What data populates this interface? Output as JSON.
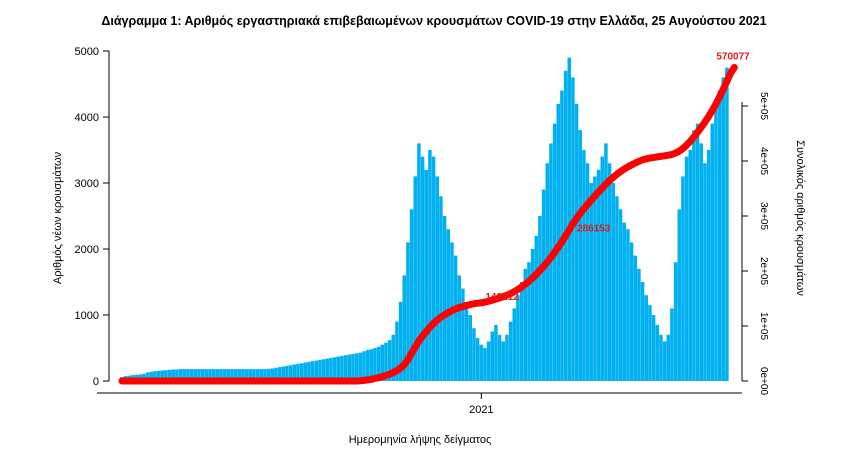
{
  "chart_data": {
    "type": "bar",
    "title": "Διάγραμμα 1: Αριθμός εργαστηριακά επιβεβαιωμένων κρουσμάτων COVID-19 στην Ελλάδα, 25 Αυγούστου 2021",
    "xlabel": "Ημερομηνία λήψης δείγματος",
    "ylabel": "Αριθμός νέων κρουσμάτων",
    "ylabel_right": "Συνολικός αριθμός κρουσμάτων",
    "x_ticks": [
      "2021"
    ],
    "y_ticks_left": [
      "0",
      "1000",
      "2000",
      "3000",
      "4000",
      "5000"
    ],
    "y_ticks_right": [
      "0e+00",
      "1e+05",
      "2e+05",
      "3e+05",
      "4e+05",
      "5e+05"
    ],
    "ylim": [
      0,
      5000
    ],
    "ylim_right": [
      0,
      600000
    ],
    "bar_color": "#00b0f0",
    "line_color": "#ff0000",
    "series": [
      {
        "name": "",
        "kind": "bar",
        "values": [
          60,
          75,
          80,
          90,
          95,
          100,
          110,
          130,
          140,
          150,
          155,
          160,
          165,
          170,
          175,
          175,
          180,
          180,
          180,
          180,
          180,
          180,
          180,
          180,
          180,
          180,
          180,
          180,
          180,
          180,
          180,
          180,
          180,
          180,
          180,
          180,
          180,
          180,
          180,
          180,
          185,
          190,
          200,
          210,
          220,
          230,
          240,
          250,
          260,
          270,
          280,
          290,
          300,
          310,
          320,
          330,
          340,
          350,
          360,
          370,
          380,
          390,
          400,
          410,
          420,
          430,
          450,
          470,
          480,
          500,
          520,
          550,
          580,
          620,
          700,
          900,
          1200,
          1600,
          2100,
          2600,
          3100,
          3600,
          3400,
          3200,
          3500,
          3400,
          3100,
          2800,
          2500,
          2300,
          2100,
          1900,
          1600,
          1400,
          1200,
          1000,
          800,
          650,
          550,
          500,
          600,
          750,
          850,
          700,
          600,
          700,
          900,
          1100,
          1300,
          1500,
          1700,
          1800,
          2000,
          2200,
          2500,
          2900,
          3300,
          3600,
          3900,
          4200,
          4400,
          4700,
          4900,
          4600,
          4200,
          3800,
          3500,
          3300,
          3000,
          3100,
          3200,
          3400,
          3600,
          3300,
          3000,
          2800,
          2600,
          2400,
          2300,
          2100,
          1900,
          1700,
          1500,
          1300,
          1150,
          1000,
          850,
          700,
          600,
          700,
          1100,
          1800,
          2600,
          3100,
          3400,
          3500,
          3800,
          3900,
          3600,
          3300,
          3500,
          3900,
          4200,
          4400,
          4600,
          4750
        ]
      },
      {
        "name": "",
        "kind": "line",
        "axis": "right",
        "values": [
          0,
          0,
          0,
          0,
          0,
          0,
          0,
          0,
          0,
          0,
          0,
          0,
          0,
          0,
          0,
          0,
          0,
          0,
          0,
          0,
          0,
          0,
          0,
          0,
          0,
          0,
          0,
          0,
          0,
          0,
          0,
          0,
          0,
          0,
          0,
          0,
          0,
          0,
          0,
          0,
          0,
          0,
          0,
          0,
          0,
          0,
          0,
          0,
          0,
          0,
          0,
          0,
          0,
          0,
          0,
          0,
          0,
          0,
          0,
          0,
          0,
          0,
          0,
          0,
          0,
          500,
          1200,
          2000,
          3000,
          4500,
          6000,
          8000,
          10000,
          12500,
          15500,
          19000,
          23500,
          30000,
          39000,
          51000,
          62000,
          73000,
          82000,
          90000,
          98000,
          105000,
          111000,
          116000,
          120500,
          124500,
          128000,
          131000,
          133500,
          135500,
          137500,
          139000,
          140500,
          141500,
          142212,
          143500,
          145000,
          147000,
          149000,
          151000,
          153500,
          156000,
          159000,
          162500,
          166500,
          171000,
          176000,
          181500,
          187500,
          194000,
          201000,
          208500,
          216500,
          225000,
          234000,
          243500,
          253500,
          264000,
          275000,
          286153,
          296000,
          305000,
          313500,
          321500,
          329000,
          336500,
          344000,
          351000,
          358000,
          364500,
          370500,
          376000,
          381000,
          385500,
          389500,
          393000,
          396500,
          399500,
          402000,
          404000,
          405500,
          406500,
          407500,
          408500,
          409500,
          410500,
          412000,
          414500,
          418000,
          423000,
          429000,
          436000,
          444000,
          452500,
          461500,
          471000,
          481000,
          492000,
          504000,
          517000,
          531000,
          545500,
          560000,
          570077
        ]
      }
    ],
    "annotations": [
      "142212",
      "286153",
      "570077"
    ],
    "grid": false,
    "legend": "none"
  }
}
